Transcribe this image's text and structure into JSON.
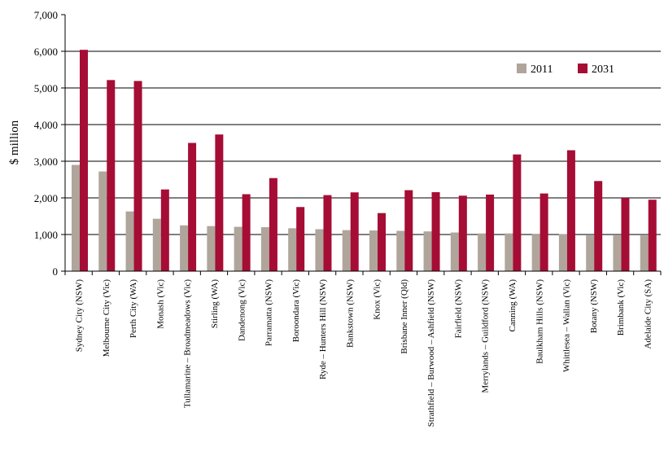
{
  "chart_data": {
    "type": "bar",
    "title": "",
    "xlabel": "",
    "ylabel": "$ million",
    "ylim": [
      0,
      7000
    ],
    "yticks": [
      "0",
      "1,000",
      "2,000",
      "3,000",
      "4,000",
      "5,000",
      "6,000",
      "7,000"
    ],
    "grid": true,
    "legend_position": "top-right",
    "categories": [
      "Sydney City (NSW)",
      "Melbourne City (Vic)",
      "Perth City (WA)",
      "Monash (Vic)",
      "Tullamarine – Broadmeadows (Vic)",
      "Stirling (WA)",
      "Dandenong (Vic)",
      "Parramatta (NSW)",
      "Boroondara (Vic)",
      "Ryde – Hunters Hill (NSW)",
      "Bankstown (NSW)",
      "Knox (Vic)",
      "Brisbane Inner (Qld)",
      "Strathfield – Burwood – Ashfield (NSW)",
      "Fairfield (NSW)",
      "Merrylands – Guildford (NSW)",
      "Canning (WA)",
      "Baulkham Hills (NSW)",
      "Whittlesea – Wallan (Vic)",
      "Botany (NSW)",
      "Brimbank (Vic)",
      "Adelaide City (SA)"
    ],
    "series": [
      {
        "name": "2011",
        "color": "#b0a59b",
        "values": [
          2900,
          2720,
          1630,
          1430,
          1250,
          1230,
          1210,
          1200,
          1170,
          1145,
          1120,
          1110,
          1100,
          1085,
          1055,
          1030,
          1030,
          1020,
          1010,
          975,
          975,
          975
        ]
      },
      {
        "name": "2031",
        "color": "#a50d35",
        "values": [
          6040,
          5215,
          5190,
          2230,
          3500,
          3730,
          2100,
          2540,
          1750,
          2075,
          2150,
          1585,
          2210,
          2155,
          2060,
          2090,
          3185,
          2120,
          3300,
          2460,
          2000,
          1950
        ]
      }
    ]
  }
}
